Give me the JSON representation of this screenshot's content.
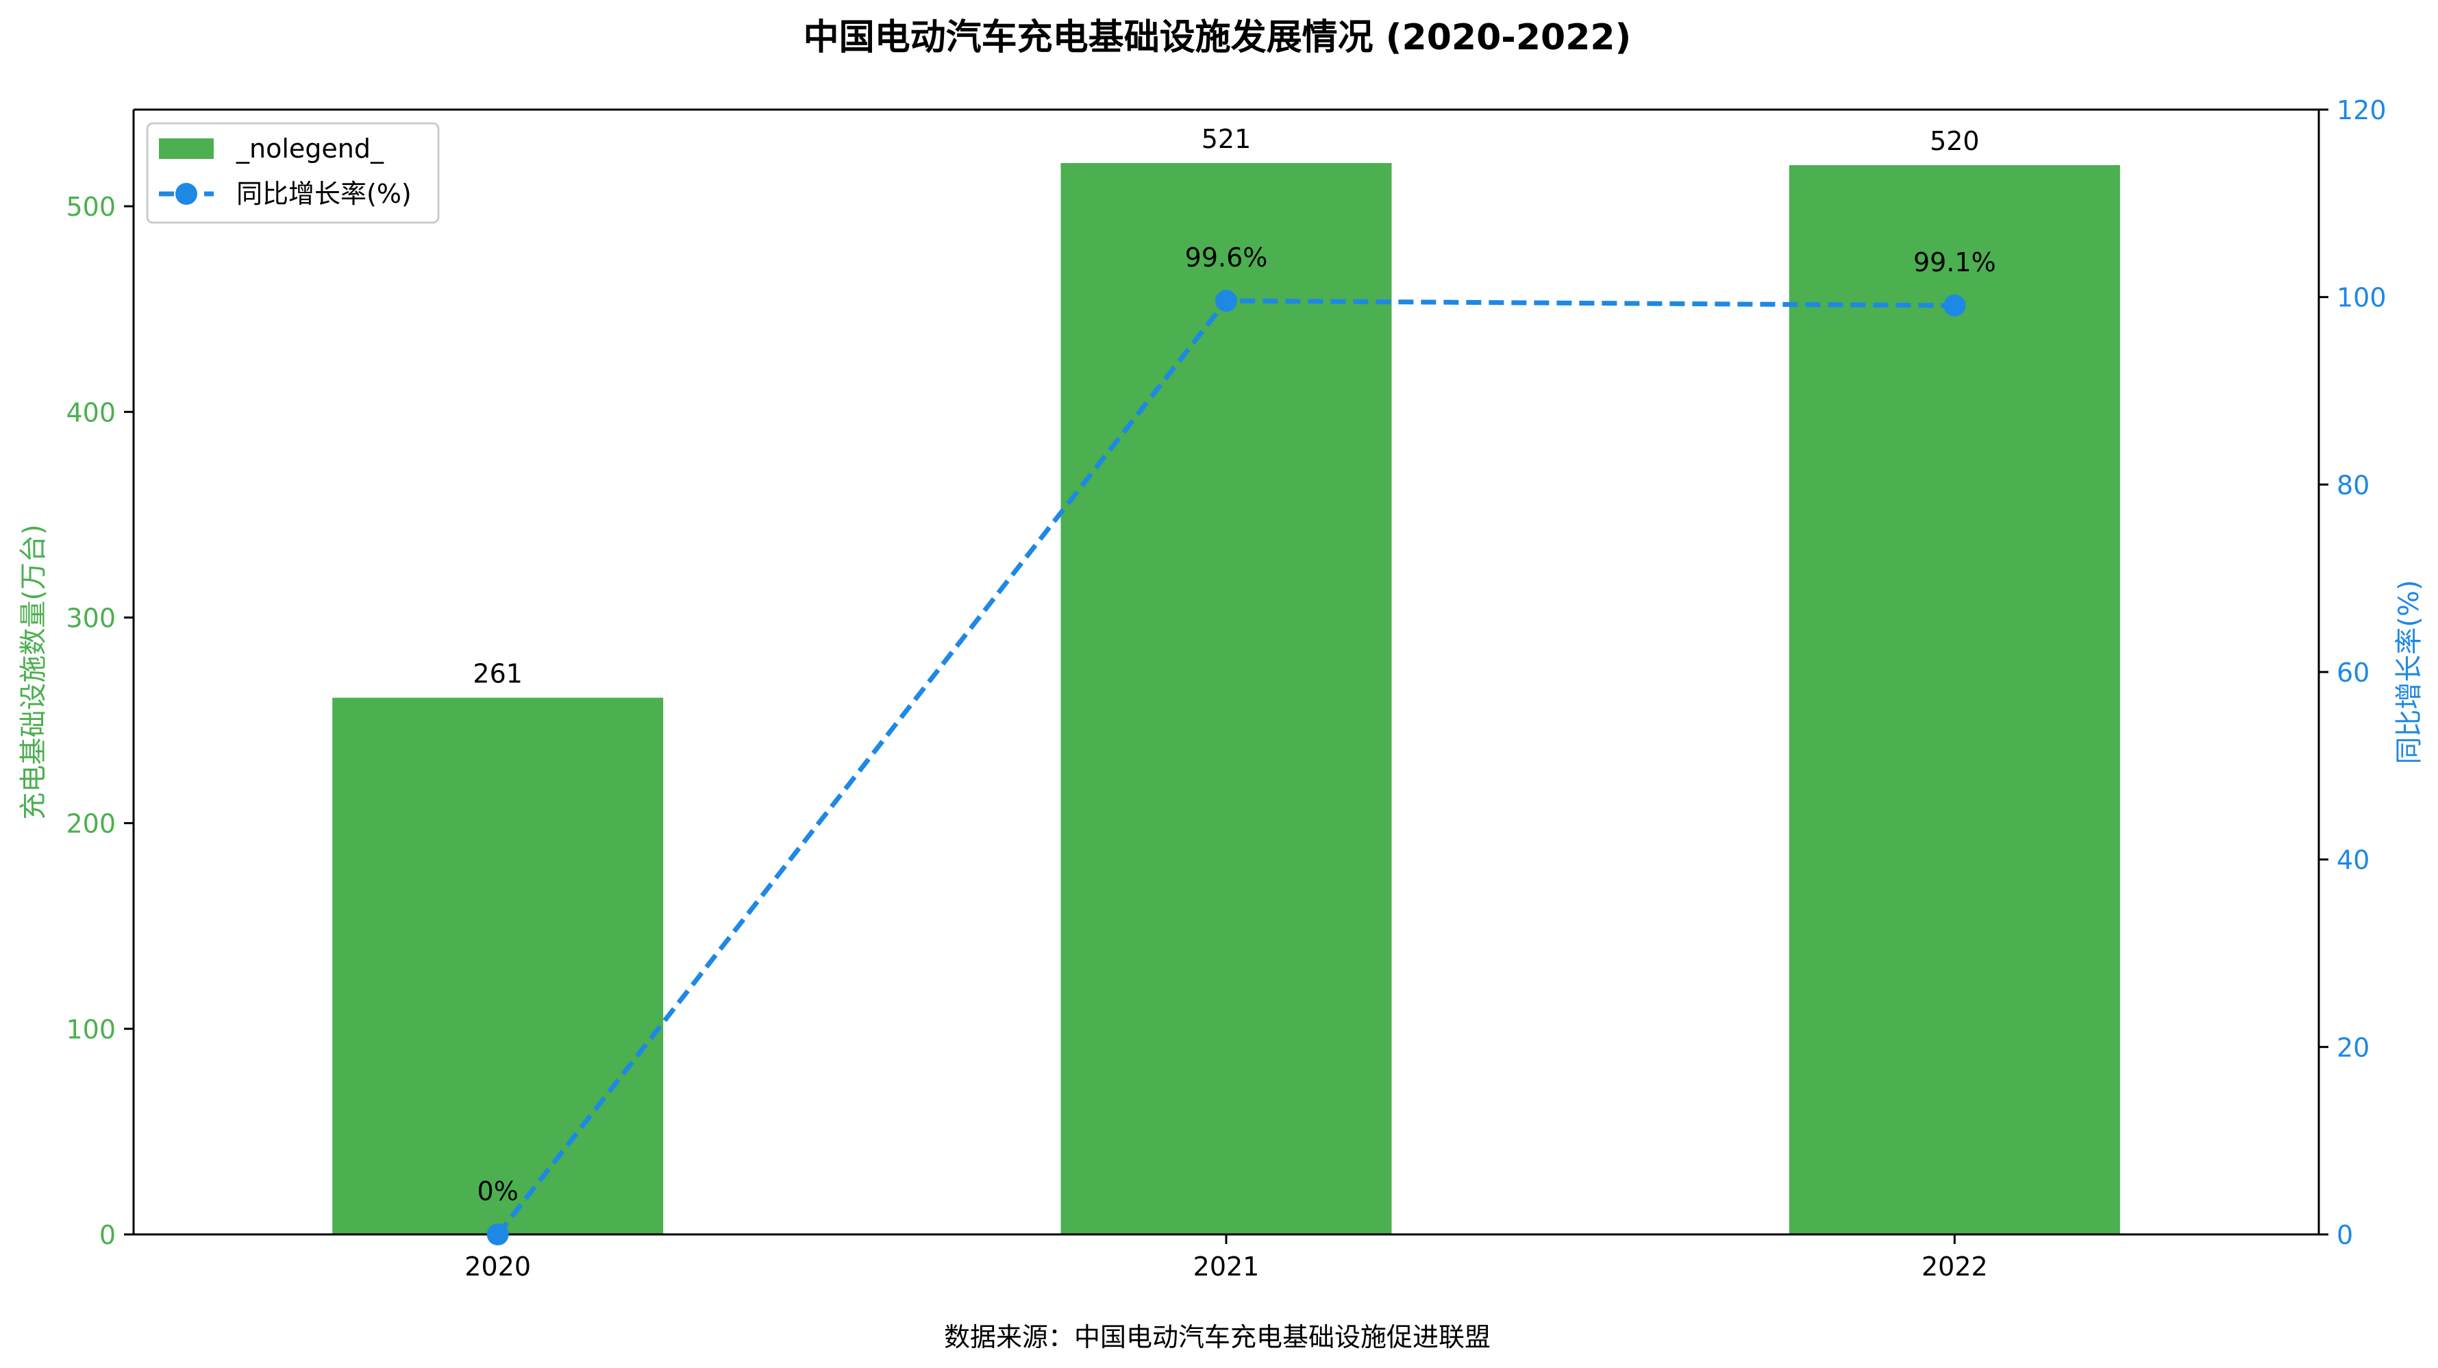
{
  "chart_data": {
    "type": "bar",
    "title": "中国电动汽车充电基础设施发展情况 (2020-2022)",
    "source": "数据来源：中国电动汽车充电基础设施促进联盟",
    "categories": [
      "2020",
      "2021",
      "2022"
    ],
    "series": [
      {
        "name": "_nolegend_",
        "type": "bar",
        "axis": "left",
        "color": "#4caf50",
        "values": [
          261,
          521,
          520
        ],
        "labels": [
          "261",
          "521",
          "520"
        ]
      },
      {
        "name": "同比增长率(%)",
        "type": "line",
        "axis": "right",
        "color": "#1e88e5",
        "style": "dashed",
        "marker": "circle",
        "values": [
          0,
          99.6,
          99.1
        ],
        "labels": [
          "0%",
          "99.6%",
          "99.1%"
        ]
      }
    ],
    "ylabel": "充电基础设施数量(万台)",
    "ylabel_right": "同比增长率(%)",
    "ylim": [
      0,
      547
    ],
    "ylim_right": [
      0,
      120
    ],
    "yticks": [
      0,
      100,
      200,
      300,
      400,
      500
    ],
    "yticks_right": [
      0,
      20,
      40,
      60,
      80,
      100,
      120
    ],
    "left_axis_color": "#4caf50",
    "right_axis_color": "#1e88e5",
    "legend_position": "top-left",
    "grid": false
  }
}
